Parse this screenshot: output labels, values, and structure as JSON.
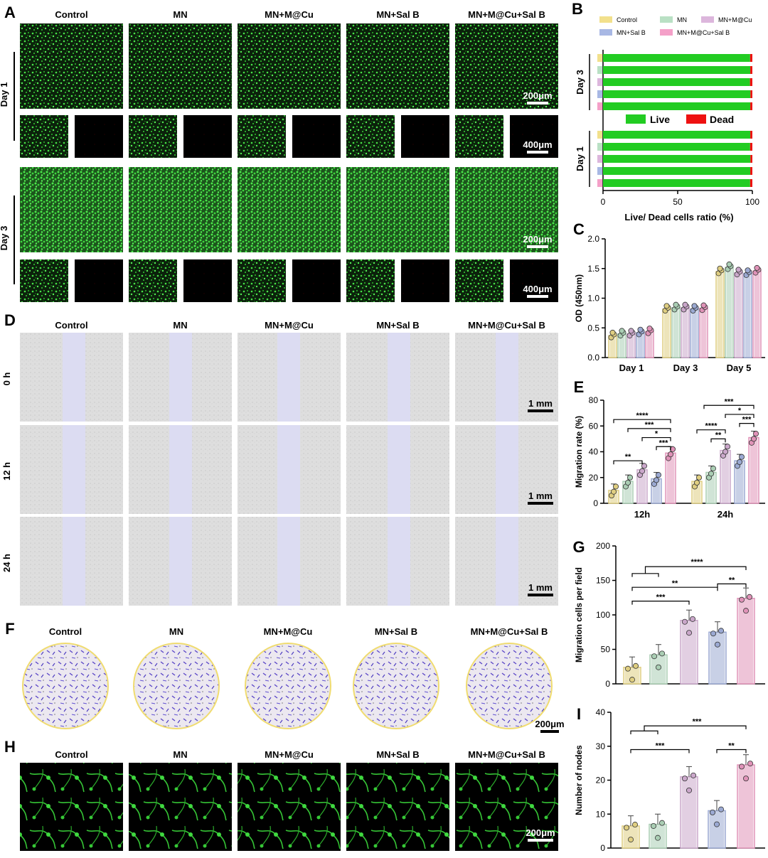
{
  "colors": {
    "control": "#f2e08c",
    "mn": "#b9e0c4",
    "mncu": "#dcb6dc",
    "salb": "#a8b8e4",
    "combo": "#f4a0c8",
    "live": "#22cc22",
    "dead": "#ee1111"
  },
  "panel_labels": {
    "A": "A",
    "B": "B",
    "C": "C",
    "D": "D",
    "E": "E",
    "F": "F",
    "G": "G",
    "H": "H",
    "I": "I"
  },
  "groups": [
    "Control",
    "MN",
    "MN+M@Cu",
    "MN+Sal B",
    "MN+M@Cu+Sal B"
  ],
  "panel_a": {
    "rows": [
      "Day 1",
      "Day 3"
    ],
    "scale_large": "200μm",
    "scale_small": "400μm"
  },
  "panel_d": {
    "rows": [
      "0 h",
      "12 h",
      "24 h"
    ],
    "scale": "1 mm"
  },
  "panel_f": {
    "scale": "200μm"
  },
  "panel_h": {
    "scale": "200μm"
  },
  "chart_data": [
    {
      "panel": "B",
      "type": "bar",
      "orientation": "horizontal",
      "stacked": true,
      "legend": [
        "Control",
        "MN",
        "MN+M@Cu",
        "MN+Sal B",
        "MN+M@Cu+Sal B"
      ],
      "stack_legend": [
        "Live",
        "Dead"
      ],
      "categories": [
        "Day 3",
        "Day 1"
      ],
      "series": [
        {
          "name": "Live",
          "values_day3": [
            98.5,
            98.6,
            98.4,
            98.7,
            98.6
          ],
          "values_day1": [
            98.6,
            98.5,
            98.7,
            98.6,
            98.5
          ]
        },
        {
          "name": "Dead",
          "values_day3": [
            1.5,
            1.4,
            1.6,
            1.3,
            1.4
          ],
          "values_day1": [
            1.4,
            1.5,
            1.3,
            1.4,
            1.5
          ]
        }
      ],
      "xlabel": "Live/ Dead cells ratio (%)",
      "xticks": [
        0,
        50,
        100
      ],
      "xlim": [
        0,
        100
      ]
    },
    {
      "panel": "C",
      "type": "bar",
      "categories": [
        "Day 1",
        "Day 3",
        "Day 5"
      ],
      "series": [
        {
          "name": "Control",
          "values": [
            0.37,
            0.82,
            1.45
          ]
        },
        {
          "name": "MN",
          "values": [
            0.4,
            0.84,
            1.52
          ]
        },
        {
          "name": "MN+M@Cu",
          "values": [
            0.4,
            0.84,
            1.43
          ]
        },
        {
          "name": "MN+Sal B",
          "values": [
            0.42,
            0.82,
            1.42
          ]
        },
        {
          "name": "MN+M@Cu+Sal B",
          "values": [
            0.44,
            0.83,
            1.46
          ]
        }
      ],
      "ylabel": "OD (450nm)",
      "ylim": [
        0,
        2.0
      ],
      "yticks": [
        0.0,
        0.5,
        1.0,
        1.5,
        2.0
      ]
    },
    {
      "panel": "E",
      "type": "bar",
      "categories": [
        "12h",
        "24h"
      ],
      "series": [
        {
          "name": "Control",
          "values": [
            10,
            17
          ]
        },
        {
          "name": "MN",
          "values": [
            17,
            24
          ]
        },
        {
          "name": "MN+M@Cu",
          "values": [
            26,
            41
          ]
        },
        {
          "name": "MN+Sal B",
          "values": [
            19,
            33
          ]
        },
        {
          "name": "MN+M@Cu+Sal B",
          "values": [
            39,
            51
          ]
        }
      ],
      "ylabel": "Migration rate (%)",
      "ylim": [
        0,
        80
      ],
      "yticks": [
        0,
        20,
        40,
        60,
        80
      ],
      "annotations": [
        "**",
        "****",
        "***",
        "*",
        "***",
        "****",
        "**",
        "***",
        "*",
        "***"
      ]
    },
    {
      "panel": "G",
      "type": "bar",
      "categories": [
        "Control",
        "MN",
        "MN+M@Cu",
        "MN+Sal B",
        "MN+M@Cu+Sal B"
      ],
      "values": [
        24,
        42,
        92,
        75,
        124
      ],
      "ylabel": "Migration cells per field",
      "ylim": [
        0,
        200
      ],
      "yticks": [
        0,
        50,
        100,
        150,
        200
      ],
      "annotations": [
        "****",
        "**",
        "**",
        "***"
      ]
    },
    {
      "panel": "I",
      "type": "bar",
      "categories": [
        "Control",
        "MN",
        "MN+M@Cu",
        "MN+Sal B",
        "MN+M@Cu+Sal B"
      ],
      "values": [
        6.5,
        7,
        21,
        11,
        24.5
      ],
      "ylabel": "Number of nodes",
      "ylim": [
        0,
        40
      ],
      "yticks": [
        0,
        10,
        20,
        30,
        40
      ],
      "annotations": [
        "***",
        "***",
        "**"
      ]
    }
  ]
}
